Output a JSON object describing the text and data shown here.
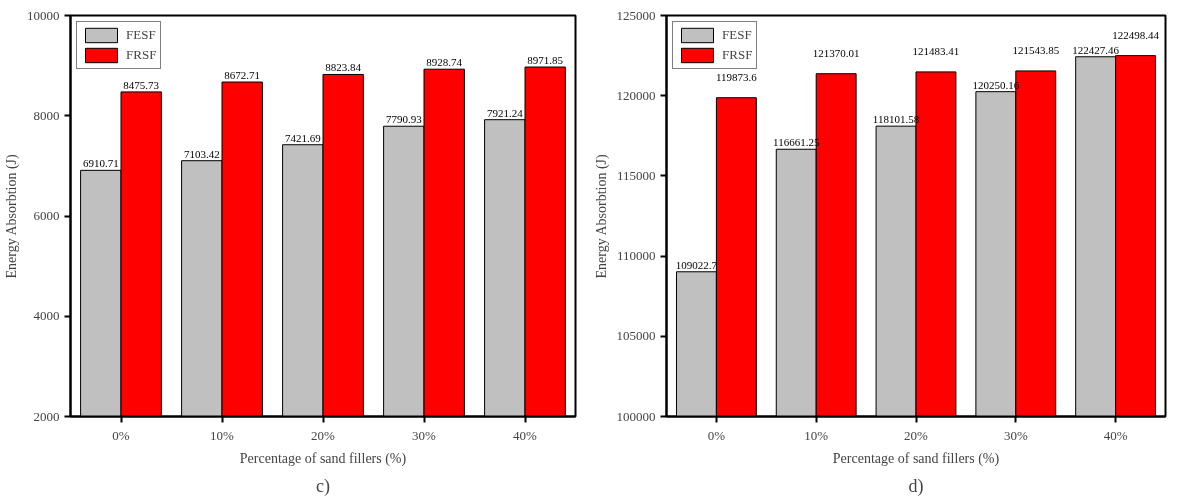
{
  "chart_data": [
    {
      "type": "bar",
      "xlabel": "Percentage of sand fillers (%)",
      "ylabel": "Energy Absorbtion (J)",
      "categories": [
        "0%",
        "10%",
        "20%",
        "30%",
        "40%"
      ],
      "series": [
        {
          "name": "FESF",
          "color": "#c0c0c0",
          "values": [
            6910.71,
            7103.42,
            7421.69,
            7790.93,
            7921.24
          ]
        },
        {
          "name": "FRSF",
          "color": "#ff0000",
          "values": [
            8475.73,
            8672.71,
            8823.84,
            8928.74,
            8971.85
          ]
        }
      ],
      "ylim": [
        2000,
        10000
      ],
      "yticks": [
        2000,
        4000,
        6000,
        8000,
        10000
      ],
      "data_labels": true,
      "grid": false,
      "legend": "top left",
      "annotations": [
        "c)"
      ]
    },
    {
      "type": "bar",
      "xlabel": "Percentage of sand fillers (%)",
      "ylabel": "Energy Absorbtion (J)",
      "categories": [
        "0%",
        "10%",
        "20%",
        "30%",
        "40%"
      ],
      "series": [
        {
          "name": "FESF",
          "color": "#c0c0c0",
          "values": [
            109022.7,
            116661.25,
            118101.58,
            120250.16,
            122427.46
          ]
        },
        {
          "name": "FRSF",
          "color": "#ff0000",
          "values": [
            119873.6,
            121370.01,
            121483.41,
            121543.85,
            122498.44
          ]
        }
      ],
      "ylim": [
        100000,
        125000
      ],
      "yticks": [
        100000,
        105000,
        110000,
        115000,
        120000,
        125000
      ],
      "data_labels": true,
      "grid": false,
      "legend": "top left",
      "annotations": [
        "d)"
      ]
    }
  ]
}
